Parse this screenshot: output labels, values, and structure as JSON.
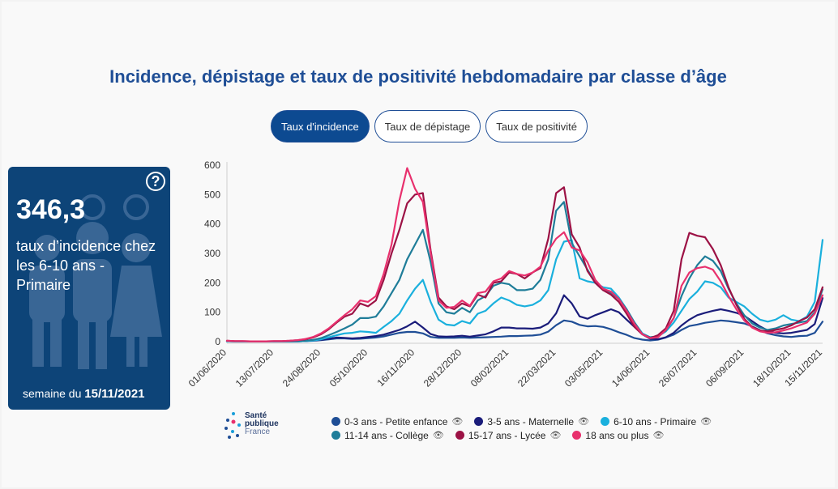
{
  "title": "Incidence, dépistage et taux de positivité hebdomadaire par classe d’âge",
  "tabs": [
    {
      "label": "Taux d'incidence",
      "active": true
    },
    {
      "label": "Taux de dépistage",
      "active": false
    },
    {
      "label": "Taux de positivité",
      "active": false
    }
  ],
  "kpi": {
    "value": "346,3",
    "label": "taux d’incidence chez les 6-10 ans - Primaire",
    "week_prefix": "semaine du",
    "week_date": "15/11/2021",
    "help": "?"
  },
  "logo": {
    "line1": "Santé",
    "line2": "publique",
    "line3": "France"
  },
  "chart_data": {
    "type": "line",
    "title": "Incidence, dépistage et taux de positivité hebdomadaire par classe d’âge",
    "ylim": [
      0,
      620
    ],
    "yticks": [
      0,
      100,
      200,
      300,
      400,
      500,
      600
    ],
    "x_count": 77,
    "x_tick_labels": [
      {
        "i": 0,
        "label": "01/06/2020"
      },
      {
        "i": 6,
        "label": "13/07/2020"
      },
      {
        "i": 12,
        "label": "24/08/2020"
      },
      {
        "i": 18,
        "label": "05/10/2020"
      },
      {
        "i": 24,
        "label": "16/11/2020"
      },
      {
        "i": 30,
        "label": "28/12/2020"
      },
      {
        "i": 36,
        "label": "08/02/2021"
      },
      {
        "i": 42,
        "label": "22/03/2021"
      },
      {
        "i": 48,
        "label": "03/05/2021"
      },
      {
        "i": 54,
        "label": "14/06/2021"
      },
      {
        "i": 60,
        "label": "26/07/2021"
      },
      {
        "i": 66,
        "label": "06/09/2021"
      },
      {
        "i": 72,
        "label": "18/10/2021"
      },
      {
        "i": 76,
        "label": "15/11/2021"
      }
    ],
    "series": [
      {
        "name": "0-3 ans - Petite enfance",
        "color": "#1f4e96",
        "values": [
          2,
          1,
          1,
          1,
          1,
          1,
          1,
          1,
          1,
          1,
          2,
          3,
          5,
          8,
          11,
          11,
          9,
          10,
          12,
          14,
          18,
          24,
          30,
          33,
          33,
          28,
          16,
          13,
          13,
          13,
          14,
          13,
          14,
          15,
          16,
          17,
          19,
          19,
          20,
          21,
          24,
          34,
          56,
          72,
          68,
          57,
          52,
          53,
          50,
          42,
          32,
          23,
          12,
          7,
          4,
          7,
          14,
          24,
          40,
          53,
          58,
          64,
          68,
          72,
          70,
          66,
          62,
          52,
          39,
          28,
          22,
          18,
          16,
          19,
          20,
          30,
          68
        ]
      },
      {
        "name": "3-5 ans - Maternelle",
        "color": "#1a1c7a",
        "values": [
          2,
          1,
          1,
          1,
          1,
          1,
          1,
          1,
          1,
          1,
          2,
          4,
          6,
          10,
          14,
          13,
          11,
          13,
          16,
          19,
          24,
          32,
          40,
          52,
          68,
          48,
          26,
          18,
          17,
          18,
          20,
          17,
          21,
          25,
          35,
          48,
          48,
          45,
          45,
          44,
          48,
          62,
          96,
          158,
          130,
          86,
          78,
          90,
          100,
          110,
          100,
          75,
          50,
          25,
          10,
          8,
          15,
          30,
          55,
          75,
          90,
          98,
          105,
          110,
          105,
          98,
          88,
          70,
          52,
          38,
          30,
          28,
          30,
          35,
          40,
          60,
          148
        ]
      },
      {
        "name": "6-10 ans - Primaire",
        "color": "#1ab0dd",
        "values": [
          1,
          1,
          1,
          1,
          1,
          1,
          1,
          1,
          1,
          1,
          2,
          4,
          8,
          15,
          22,
          28,
          30,
          35,
          33,
          30,
          50,
          70,
          95,
          140,
          180,
          210,
          135,
          75,
          58,
          55,
          70,
          62,
          95,
          105,
          130,
          150,
          140,
          125,
          120,
          125,
          140,
          175,
          280,
          340,
          345,
          215,
          205,
          200,
          185,
          180,
          150,
          110,
          65,
          28,
          15,
          18,
          35,
          65,
          105,
          145,
          170,
          205,
          200,
          185,
          150,
          135,
          120,
          95,
          75,
          68,
          75,
          90,
          75,
          70,
          85,
          135,
          346
        ]
      },
      {
        "name": "11-14 ans - Collège",
        "color": "#1f7d99",
        "values": [
          2,
          1,
          1,
          1,
          1,
          1,
          1,
          1,
          1,
          2,
          3,
          6,
          12,
          22,
          33,
          45,
          58,
          80,
          80,
          85,
          120,
          165,
          210,
          280,
          330,
          380,
          270,
          130,
          100,
          95,
          115,
          100,
          140,
          155,
          190,
          200,
          195,
          175,
          175,
          180,
          210,
          280,
          445,
          475,
          335,
          290,
          245,
          200,
          175,
          165,
          145,
          110,
          65,
          25,
          15,
          18,
          38,
          80,
          155,
          215,
          260,
          290,
          275,
          240,
          180,
          130,
          90,
          62,
          48,
          40,
          45,
          55,
          60,
          65,
          70,
          100,
          178
        ]
      },
      {
        "name": "15-17 ans - Lycée",
        "color": "#9c1245",
        "values": [
          3,
          2,
          2,
          1,
          1,
          1,
          2,
          2,
          3,
          5,
          8,
          14,
          25,
          42,
          65,
          85,
          95,
          130,
          120,
          140,
          210,
          300,
          380,
          470,
          500,
          505,
          310,
          150,
          120,
          110,
          130,
          120,
          160,
          150,
          200,
          205,
          235,
          230,
          215,
          235,
          250,
          350,
          505,
          525,
          365,
          320,
          240,
          200,
          175,
          160,
          135,
          95,
          50,
          25,
          12,
          22,
          45,
          105,
          280,
          370,
          360,
          355,
          315,
          260,
          185,
          125,
          78,
          50,
          38,
          35,
          40,
          45,
          55,
          70,
          82,
          110,
          185
        ]
      },
      {
        "name": "18 ans ou plus",
        "color": "#e8306d",
        "values": [
          3,
          2,
          2,
          1,
          1,
          1,
          2,
          2,
          3,
          5,
          9,
          16,
          28,
          45,
          68,
          90,
          110,
          140,
          135,
          155,
          230,
          330,
          480,
          590,
          520,
          475,
          300,
          140,
          115,
          118,
          140,
          122,
          165,
          170,
          205,
          215,
          240,
          230,
          225,
          235,
          255,
          310,
          350,
          372,
          320,
          310,
          270,
          210,
          180,
          170,
          145,
          105,
          60,
          25,
          12,
          15,
          40,
          80,
          190,
          235,
          250,
          255,
          245,
          205,
          155,
          110,
          72,
          48,
          35,
          30,
          32,
          38,
          45,
          55,
          65,
          95,
          158
        ]
      }
    ]
  }
}
